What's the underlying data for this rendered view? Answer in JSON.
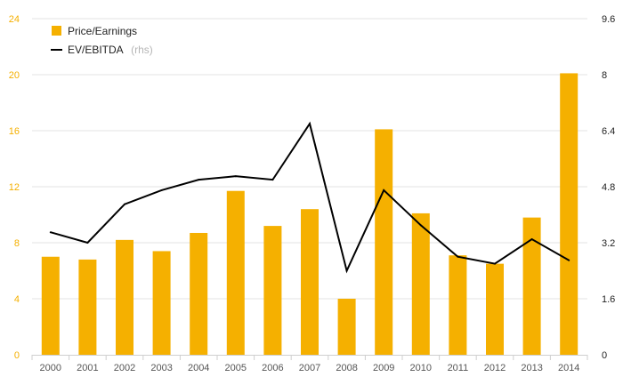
{
  "chart_data": {
    "type": "bar+line",
    "categories": [
      "2000",
      "2001",
      "2002",
      "2003",
      "2004",
      "2005",
      "2006",
      "2007",
      "2008",
      "2009",
      "2010",
      "2011",
      "2012",
      "2013",
      "2014"
    ],
    "series": [
      {
        "name": "Price/Earnings",
        "type": "bar",
        "axis": "left",
        "color": "#f5b000",
        "values": [
          7.0,
          6.8,
          8.2,
          7.4,
          8.7,
          11.7,
          9.2,
          10.4,
          4.0,
          16.1,
          10.1,
          7.1,
          6.5,
          9.8,
          20.1
        ]
      },
      {
        "name": "EV/EBITDA",
        "legend_suffix": "(rhs)",
        "type": "line",
        "axis": "right",
        "color": "#000000",
        "values": [
          3.5,
          3.2,
          4.3,
          4.7,
          5.0,
          5.1,
          5.0,
          6.6,
          2.4,
          4.7,
          3.7,
          2.8,
          2.6,
          3.3,
          2.7
        ]
      }
    ],
    "y_left": {
      "min": 0,
      "max": 24,
      "ticks": [
        "0",
        "4",
        "8",
        "12",
        "16",
        "20",
        "24"
      ],
      "color": "#f5b000"
    },
    "y_right": {
      "min": 0,
      "max": 9.6,
      "ticks": [
        "0",
        "1.6",
        "3.2",
        "4.8",
        "6.4",
        "8",
        "9.6"
      ],
      "color": "#000000"
    },
    "grid": true,
    "legend_position": "top-left"
  }
}
